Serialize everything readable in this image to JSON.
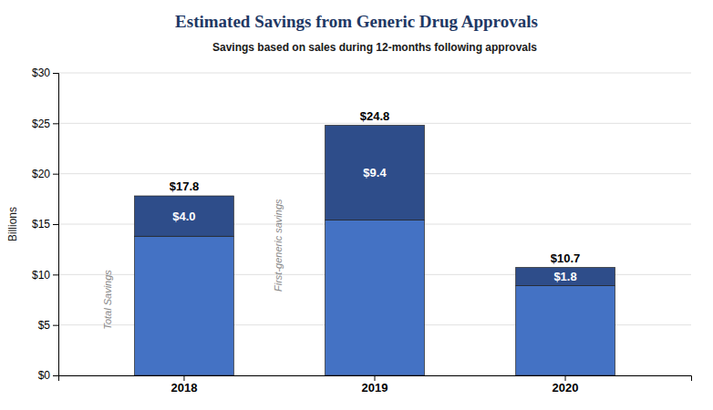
{
  "chart_data": {
    "type": "bar",
    "stacked": true,
    "title": "Estimated Savings from Generic Drug Approvals",
    "subtitle": "Savings based on sales during 12-months following approvals",
    "ylabel": "Billions",
    "categories": [
      "2018",
      "2019",
      "2020"
    ],
    "series": [
      {
        "color": "#4472C4",
        "values": [
          13.8,
          15.4,
          8.9
        ]
      },
      {
        "color": "#2E4D8A",
        "values": [
          4.0,
          9.4,
          1.8
        ],
        "data_labels": true,
        "value_labels": [
          "$4.0",
          "$9.4",
          "$1.8"
        ]
      }
    ],
    "totals": {
      "values": [
        17.8,
        24.8,
        10.7
      ],
      "value_labels": [
        "$17.8",
        "$24.8",
        "$10.7"
      ]
    },
    "annotations": [
      {
        "text": "Total Savings"
      },
      {
        "text": "First-generic savings"
      }
    ],
    "ylim": [
      0,
      30
    ],
    "yticks": [
      {
        "value": 0,
        "label": "$0"
      },
      {
        "value": 5,
        "label": "$5"
      },
      {
        "value": 10,
        "label": "$10"
      },
      {
        "value": 15,
        "label": "$15"
      },
      {
        "value": 20,
        "label": "$20"
      },
      {
        "value": 25,
        "label": "$25"
      },
      {
        "value": 30,
        "label": "$30"
      }
    ],
    "grid": true
  }
}
